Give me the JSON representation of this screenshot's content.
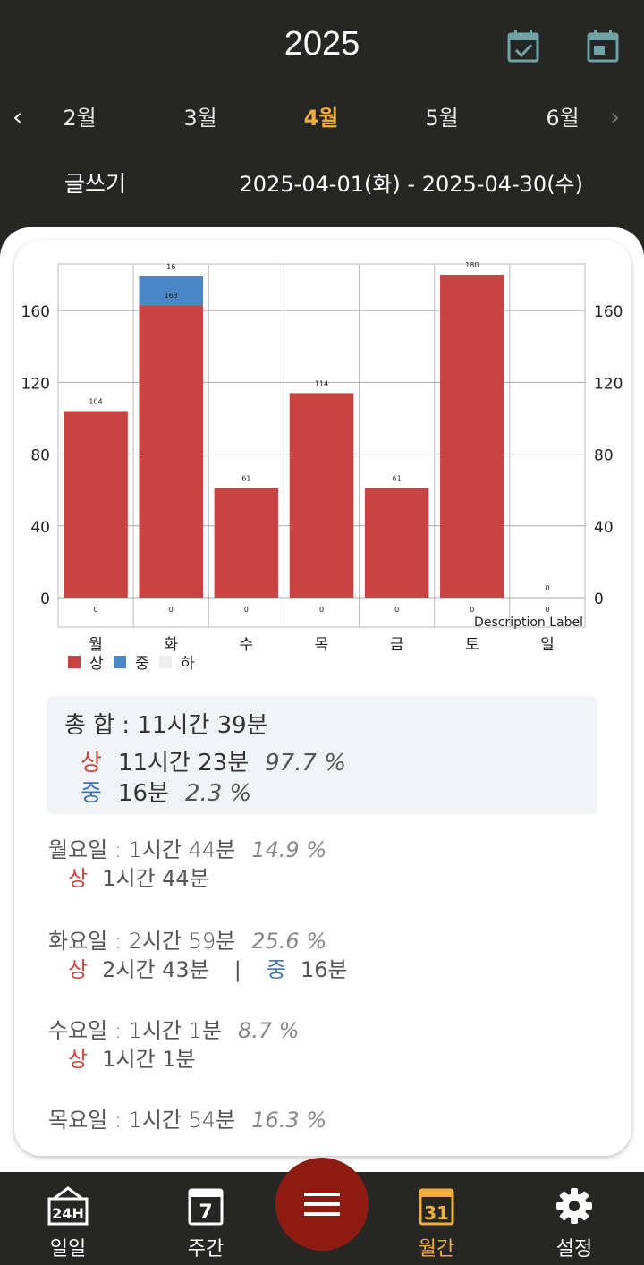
{
  "header": {
    "year": "2025",
    "icons": [
      "calendar-check-icon",
      "calendar-icon"
    ],
    "months": [
      "2월",
      "3월",
      "4월",
      "5월",
      "6월"
    ],
    "active_month": "4월",
    "subject": "글쓰기",
    "range": "2025-04-01(화) - 2025-04-30(수)"
  },
  "chart_data": {
    "type": "bar",
    "stacked": true,
    "categories": [
      "월",
      "화",
      "수",
      "목",
      "금",
      "토",
      "일"
    ],
    "series": [
      {
        "name": "상",
        "color": "#c84444",
        "values": [
          104,
          163,
          61,
          114,
          61,
          180,
          0
        ]
      },
      {
        "name": "중",
        "color": "#4a86c6",
        "values": [
          0,
          16,
          0,
          0,
          0,
          0,
          0
        ]
      },
      {
        "name": "하",
        "color": "#eeeeee",
        "values": [
          0,
          0,
          0,
          0,
          0,
          0,
          0
        ]
      }
    ],
    "top_labels": [
      "104",
      "16",
      "61",
      "114",
      "61",
      "180",
      "0"
    ],
    "inner_label": "163",
    "bottom_labels": [
      "0",
      "0",
      "0",
      "0",
      "0",
      "0",
      "0"
    ],
    "yticks": [
      0,
      40,
      80,
      120,
      160
    ],
    "ylim": [
      0,
      186
    ],
    "description": "Description Label",
    "grid": true,
    "legend_placement": "bottom-left"
  },
  "summary": {
    "total": "총 합 : 11시간 39분",
    "rows": [
      {
        "tag": "상",
        "time": "11시간 23분",
        "pct": "97.7 %"
      },
      {
        "tag": "중",
        "time": "16분",
        "pct": "2.3 %"
      }
    ]
  },
  "days": [
    {
      "title": "월요일 : 1시간 44분",
      "pct": "14.9 %",
      "detail": {
        "tag1": "상",
        "time1": "1시간 44분"
      }
    },
    {
      "title": "화요일 : 2시간 59분",
      "pct": "25.6 %",
      "detail": {
        "tag1": "상",
        "time1": "2시간 43분",
        "sep": "|",
        "tag2": "중",
        "time2": "16분"
      }
    },
    {
      "title": "수요일 : 1시간 1분",
      "pct": "8.7 %",
      "detail": {
        "tag1": "상",
        "time1": "1시간 1분"
      }
    },
    {
      "title": "목요일 : 1시간 54분",
      "pct": "16.3 %"
    }
  ],
  "nav": {
    "items": [
      {
        "label": "일일",
        "icon": "calendar-24h-icon"
      },
      {
        "label": "주간",
        "icon": "calendar-7-icon"
      },
      {
        "label": "월간",
        "icon": "calendar-31-icon"
      },
      {
        "label": "설정",
        "icon": "gear-icon"
      }
    ],
    "fab_icon": "menu-icon",
    "weekly_num": "7",
    "monthly_num": "31",
    "daily_badge": "24H"
  }
}
